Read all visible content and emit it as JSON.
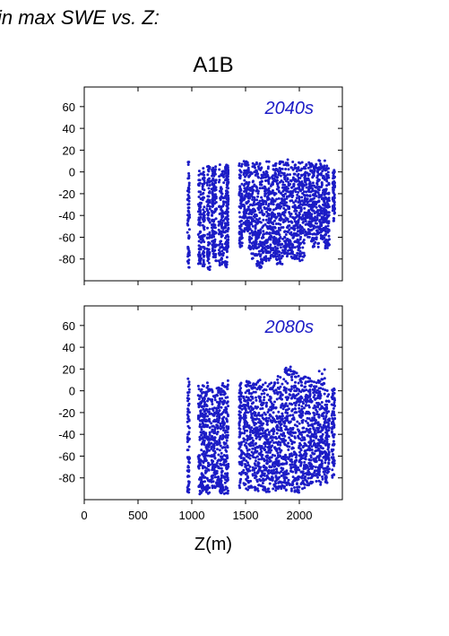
{
  "figure": {
    "heading": "in max SWE vs. Z:",
    "scenario": "A1B",
    "marker_color": "#1c1cc6"
  },
  "chart_data": [
    {
      "type": "scatter",
      "panel_label": "2040s",
      "xlabel": "",
      "ylabel": "",
      "xlim": [
        0,
        2400
      ],
      "ylim": [
        -100,
        78
      ],
      "yticks": [
        60,
        40,
        20,
        0,
        -20,
        -40,
        -60,
        -80
      ],
      "xticks": [
        0,
        500,
        1000,
        1500,
        2000
      ],
      "x_tick_labels_shown": false,
      "clusters": [
        {
          "x": [
            960,
            980
          ],
          "y": [
            -88,
            10
          ]
        },
        {
          "x": [
            1060,
            1090
          ],
          "y": [
            -85,
            2
          ]
        },
        {
          "x": [
            1100,
            1120
          ],
          "y": [
            -88,
            4
          ]
        },
        {
          "x": [
            1140,
            1170
          ],
          "y": [
            -90,
            6
          ]
        },
        {
          "x": [
            1185,
            1200
          ],
          "y": [
            -75,
            5
          ]
        },
        {
          "x": [
            1200,
            1230
          ],
          "y": [
            -85,
            5
          ]
        },
        {
          "x": [
            1250,
            1300
          ],
          "y": [
            -88,
            7
          ]
        },
        {
          "x": [
            1310,
            1330
          ],
          "y": [
            -90,
            7
          ]
        },
        {
          "x": [
            1330,
            1340
          ],
          "y": [
            -70,
            6
          ]
        },
        {
          "x": [
            1440,
            1470
          ],
          "y": [
            -75,
            8
          ]
        },
        {
          "x": [
            1480,
            1530
          ],
          "y": [
            -55,
            10
          ]
        },
        {
          "x": [
            1530,
            1600
          ],
          "y": [
            -80,
            10
          ]
        },
        {
          "x": [
            1600,
            1660
          ],
          "y": [
            -88,
            9
          ]
        },
        {
          "x": [
            1660,
            1720
          ],
          "y": [
            -82,
            10
          ]
        },
        {
          "x": [
            1720,
            1780
          ],
          "y": [
            -80,
            8
          ]
        },
        {
          "x": [
            1780,
            1850
          ],
          "y": [
            -85,
            10
          ]
        },
        {
          "x": [
            1850,
            1920
          ],
          "y": [
            -78,
            12
          ]
        },
        {
          "x": [
            1920,
            1990
          ],
          "y": [
            -80,
            10
          ]
        },
        {
          "x": [
            1990,
            2050
          ],
          "y": [
            -82,
            9
          ]
        },
        {
          "x": [
            2050,
            2110
          ],
          "y": [
            -60,
            10
          ]
        },
        {
          "x": [
            2110,
            2180
          ],
          "y": [
            -70,
            8
          ]
        },
        {
          "x": [
            2180,
            2240
          ],
          "y": [
            -65,
            11
          ]
        },
        {
          "x": [
            2240,
            2280
          ],
          "y": [
            -70,
            6
          ]
        },
        {
          "x": [
            2310,
            2330
          ],
          "y": [
            -45,
            2
          ]
        }
      ]
    },
    {
      "type": "scatter",
      "panel_label": "2080s",
      "xlabel": "Z(m)",
      "ylabel": "",
      "xlim": [
        0,
        2400
      ],
      "ylim": [
        -100,
        78
      ],
      "yticks": [
        60,
        40,
        20,
        0,
        -20,
        -40,
        -60,
        -80
      ],
      "xticks": [
        0,
        500,
        1000,
        1500,
        2000
      ],
      "x_tick_labels": [
        "0",
        "500",
        "1000",
        "1500",
        "2000"
      ],
      "x_tick_labels_shown": true,
      "clusters": [
        {
          "x": [
            960,
            980
          ],
          "y": [
            -94,
            12
          ]
        },
        {
          "x": [
            1060,
            1100
          ],
          "y": [
            -95,
            5
          ]
        },
        {
          "x": [
            1100,
            1130
          ],
          "y": [
            -92,
            5
          ]
        },
        {
          "x": [
            1130,
            1170
          ],
          "y": [
            -95,
            10
          ]
        },
        {
          "x": [
            1180,
            1220
          ],
          "y": [
            -90,
            2
          ]
        },
        {
          "x": [
            1230,
            1260
          ],
          "y": [
            -90,
            4
          ]
        },
        {
          "x": [
            1260,
            1310
          ],
          "y": [
            -95,
            8
          ]
        },
        {
          "x": [
            1310,
            1340
          ],
          "y": [
            -95,
            12
          ]
        },
        {
          "x": [
            1440,
            1470
          ],
          "y": [
            -90,
            10
          ]
        },
        {
          "x": [
            1480,
            1540
          ],
          "y": [
            -92,
            10
          ]
        },
        {
          "x": [
            1540,
            1600
          ],
          "y": [
            -92,
            10
          ]
        },
        {
          "x": [
            1600,
            1660
          ],
          "y": [
            -92,
            12
          ]
        },
        {
          "x": [
            1660,
            1720
          ],
          "y": [
            -94,
            10
          ]
        },
        {
          "x": [
            1720,
            1790
          ],
          "y": [
            -92,
            8
          ]
        },
        {
          "x": [
            1790,
            1860
          ],
          "y": [
            -90,
            15
          ]
        },
        {
          "x": [
            1860,
            1930
          ],
          "y": [
            -92,
            22
          ]
        },
        {
          "x": [
            1930,
            2000
          ],
          "y": [
            -94,
            20
          ]
        },
        {
          "x": [
            2000,
            2060
          ],
          "y": [
            -90,
            15
          ]
        },
        {
          "x": [
            2060,
            2120
          ],
          "y": [
            -88,
            12
          ]
        },
        {
          "x": [
            2120,
            2180
          ],
          "y": [
            -85,
            10
          ]
        },
        {
          "x": [
            2180,
            2240
          ],
          "y": [
            -88,
            22
          ]
        },
        {
          "x": [
            2240,
            2280
          ],
          "y": [
            -85,
            5
          ]
        },
        {
          "x": [
            2300,
            2330
          ],
          "y": [
            -80,
            2
          ]
        }
      ]
    }
  ]
}
